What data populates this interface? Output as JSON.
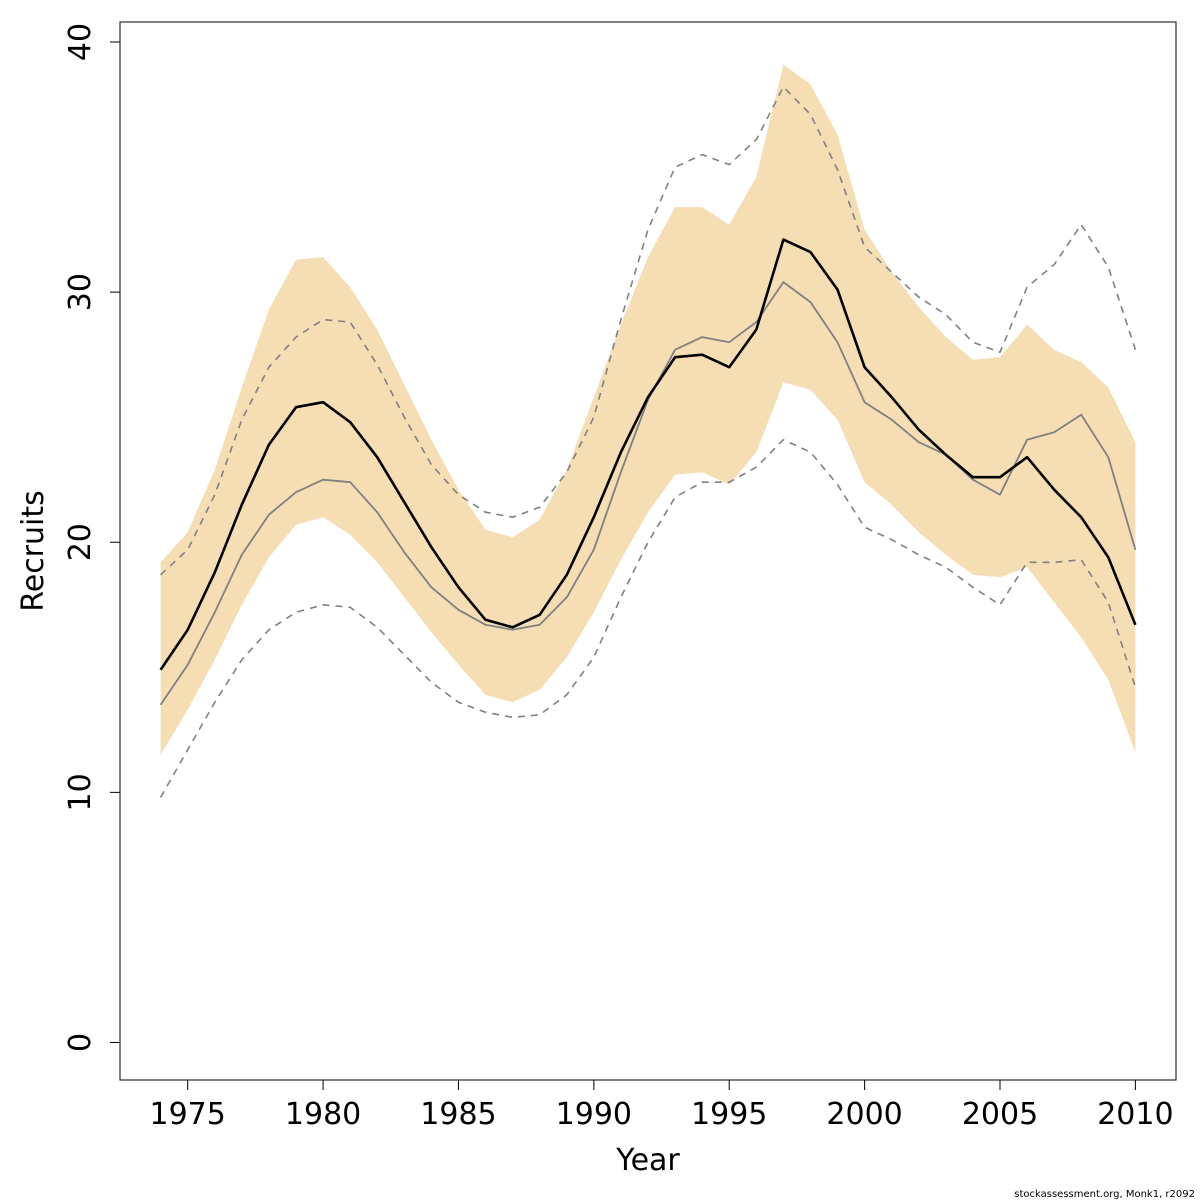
{
  "chart_data": {
    "type": "line",
    "xlabel": "Year",
    "ylabel": "Recruits",
    "xlim": [
      1972.5,
      2011.5
    ],
    "ylim": [
      -1.5,
      40.8
    ],
    "x_ticks": [
      1975,
      1980,
      1985,
      1990,
      1995,
      2000,
      2005,
      2010
    ],
    "y_ticks": [
      0,
      10,
      20,
      30,
      40
    ],
    "grid": false,
    "legend": "none",
    "colors": {
      "band": "#f5deb3",
      "main_line": "#000000",
      "secondary_line": "#808080",
      "dashed_line": "#808080",
      "axis": "#000000"
    },
    "x": [
      1974,
      1975,
      1976,
      1977,
      1978,
      1979,
      1980,
      1981,
      1982,
      1983,
      1984,
      1985,
      1986,
      1987,
      1988,
      1989,
      1990,
      1991,
      1992,
      1993,
      1994,
      1995,
      1996,
      1997,
      1998,
      1999,
      2000,
      2001,
      2002,
      2003,
      2004,
      2005,
      2006,
      2007,
      2008,
      2009,
      2010
    ],
    "band": {
      "upper": [
        19.2,
        20.4,
        22.9,
        26.2,
        29.3,
        31.3,
        31.4,
        30.2,
        28.5,
        26.3,
        24.1,
        22.1,
        20.5,
        20.2,
        20.9,
        22.9,
        25.8,
        28.7,
        31.4,
        33.4,
        33.4,
        32.7,
        34.6,
        39.1,
        38.3,
        36.3,
        32.5,
        30.8,
        29.4,
        28.2,
        27.3,
        27.4,
        28.7,
        27.7,
        27.2,
        26.2,
        24.0
      ],
      "lower": [
        11.5,
        13.3,
        15.3,
        17.5,
        19.4,
        20.7,
        21.0,
        20.3,
        19.2,
        17.8,
        16.4,
        15.1,
        13.9,
        13.6,
        14.1,
        15.4,
        17.2,
        19.3,
        21.2,
        22.7,
        22.8,
        22.3,
        23.6,
        26.4,
        26.1,
        24.9,
        22.4,
        21.5,
        20.4,
        19.5,
        18.7,
        18.6,
        19.0,
        17.6,
        16.2,
        14.5,
        11.6
      ]
    },
    "series": [
      {
        "values": [
          14.9,
          16.5,
          18.8,
          21.5,
          23.9,
          25.4,
          25.6,
          24.8,
          23.4,
          21.6,
          19.8,
          18.2,
          16.9,
          16.6,
          17.1,
          18.7,
          21.0,
          23.6,
          25.8,
          27.4,
          27.5,
          27.0,
          28.5,
          32.1,
          31.6,
          30.1,
          27.0,
          25.8,
          24.5,
          23.5,
          22.6,
          22.6,
          23.4,
          22.1,
          21.0,
          19.4,
          16.7
        ]
      },
      {
        "values": [
          13.5,
          15.1,
          17.2,
          19.5,
          21.1,
          22.0,
          22.5,
          22.4,
          21.2,
          19.6,
          18.2,
          17.3,
          16.7,
          16.5,
          16.7,
          17.8,
          19.7,
          22.8,
          25.7,
          27.7,
          28.2,
          28.0,
          28.8,
          30.4,
          29.6,
          28.0,
          25.6,
          24.9,
          24.0,
          23.5,
          22.5,
          21.9,
          24.1,
          24.4,
          25.1,
          23.4,
          19.7
        ]
      },
      {
        "values": [
          18.7,
          19.7,
          21.9,
          24.9,
          27.0,
          28.2,
          28.9,
          28.8,
          27.1,
          25.0,
          23.1,
          21.9,
          21.2,
          21.0,
          21.4,
          22.8,
          25.0,
          28.9,
          32.5,
          35.0,
          35.5,
          35.1,
          36.1,
          38.2,
          37.1,
          34.9,
          31.8,
          30.8,
          29.8,
          29.1,
          28.0,
          27.6,
          30.2,
          31.1,
          32.7,
          31.0,
          27.7
        ]
      },
      {
        "values": [
          9.8,
          11.7,
          13.6,
          15.3,
          16.5,
          17.2,
          17.5,
          17.4,
          16.6,
          15.5,
          14.4,
          13.6,
          13.2,
          13.0,
          13.1,
          13.9,
          15.4,
          17.8,
          20.0,
          21.8,
          22.4,
          22.4,
          23.0,
          24.1,
          23.6,
          22.3,
          20.6,
          20.1,
          19.5,
          19.0,
          18.2,
          17.5,
          19.2,
          19.2,
          19.3,
          17.6,
          14.2
        ]
      }
    ]
  },
  "footer_text": "stockassessment.org, Monk1, r2092"
}
